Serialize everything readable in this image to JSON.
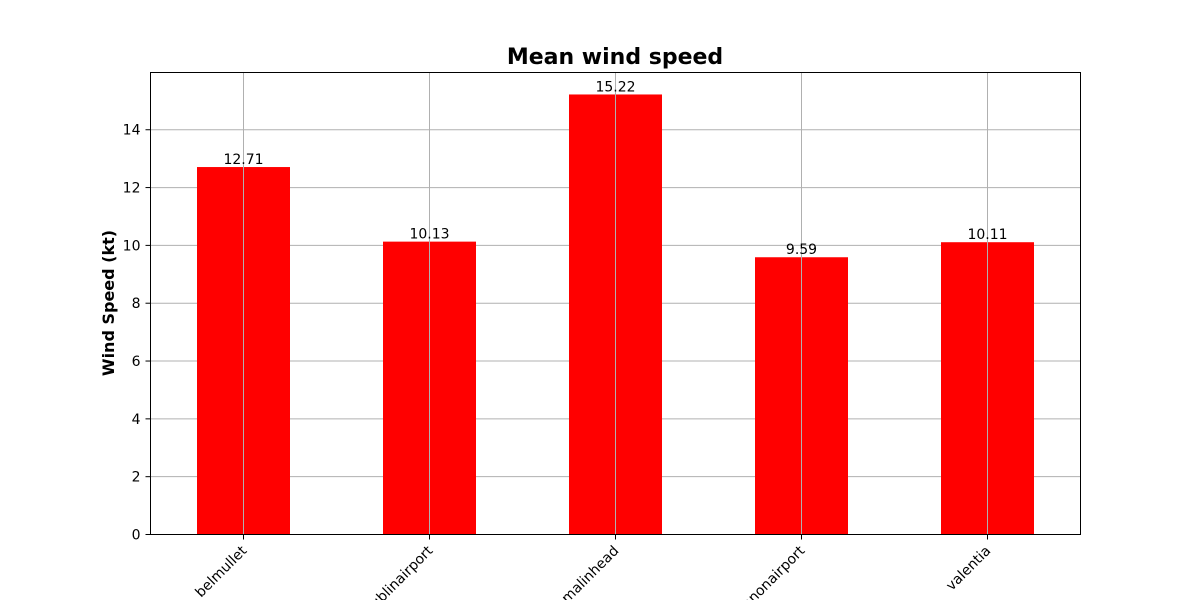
{
  "chart_data": {
    "type": "bar",
    "title": "Mean wind speed",
    "xlabel": "",
    "ylabel": "Wind Speed (kt)",
    "categories": [
      "belmullet",
      "dublinairport",
      "malinhead",
      "shannonairport",
      "valentia"
    ],
    "values": [
      12.71,
      10.13,
      15.22,
      9.59,
      10.11
    ],
    "value_labels": [
      "12.71",
      "10.13",
      "15.22",
      "9.59",
      "10.11"
    ],
    "ylim": [
      0,
      15.98
    ],
    "yticks": [
      0,
      2,
      4,
      6,
      8,
      10,
      12,
      14
    ],
    "grid": true,
    "bar_color": "#ff0000"
  }
}
